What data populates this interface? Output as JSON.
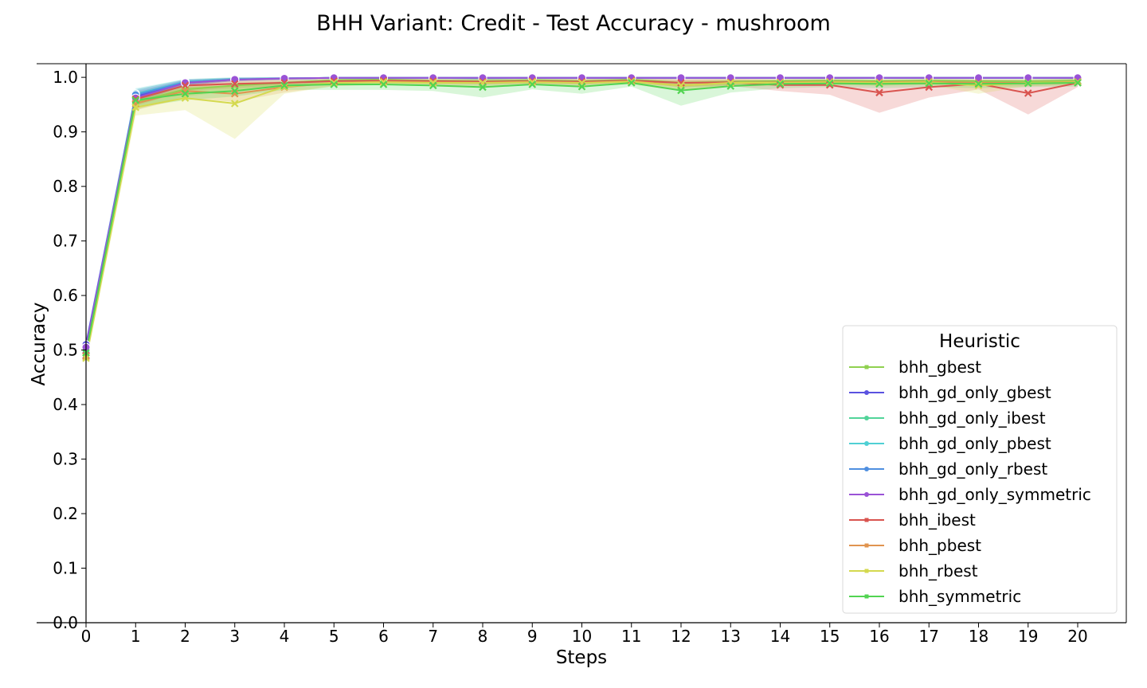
{
  "chart_data": {
    "type": "line",
    "title": "BHH Variant: Credit - Test Accuracy - mushroom",
    "xlabel": "Steps",
    "ylabel": "Accuracy",
    "xlim": [
      0,
      21
    ],
    "ylim": [
      0,
      1.025
    ],
    "x": [
      0,
      1,
      2,
      3,
      4,
      5,
      6,
      7,
      8,
      9,
      10,
      11,
      12,
      13,
      14,
      15,
      16,
      17,
      18,
      19,
      20
    ],
    "x_ticks": [
      "0",
      "1",
      "2",
      "3",
      "4",
      "5",
      "6",
      "7",
      "8",
      "9",
      "10",
      "11",
      "12",
      "13",
      "14",
      "15",
      "16",
      "17",
      "18",
      "19",
      "20"
    ],
    "y_ticks": [
      "0.0",
      "0.1",
      "0.2",
      "0.3",
      "0.4",
      "0.5",
      "0.6",
      "0.7",
      "0.8",
      "0.9",
      "1.0"
    ],
    "grid": false,
    "legend": {
      "title": "Heuristic",
      "placement": "lower-right"
    },
    "series": [
      {
        "name": "bhh_gbest",
        "color": "#8fd14f",
        "marker": "x",
        "values": [
          0.49,
          0.955,
          0.978,
          0.985,
          0.99,
          0.995,
          0.996,
          0.994,
          0.993,
          0.995,
          0.993,
          0.996,
          0.99,
          0.992,
          0.993,
          0.994,
          0.993,
          0.994,
          0.993,
          0.992,
          0.994
        ],
        "lower": [
          0.48,
          0.94,
          0.965,
          0.975,
          0.983,
          0.99,
          0.992,
          0.99,
          0.988,
          0.99,
          0.988,
          0.992,
          0.982,
          0.986,
          0.988,
          0.99,
          0.988,
          0.99,
          0.988,
          0.987,
          0.99
        ],
        "upper": [
          0.5,
          0.968,
          0.99,
          0.993,
          0.996,
          0.999,
          0.999,
          0.998,
          0.997,
          0.999,
          0.997,
          0.999,
          0.997,
          0.997,
          0.997,
          0.998,
          0.997,
          0.998,
          0.997,
          0.997,
          0.998
        ]
      },
      {
        "name": "bhh_gd_only_gbest",
        "color": "#5a52e0",
        "marker": "o",
        "values": [
          0.51,
          0.965,
          0.99,
          0.996,
          0.998,
          0.999,
          0.999,
          0.999,
          0.999,
          0.999,
          0.999,
          0.999,
          0.999,
          0.999,
          0.999,
          0.999,
          0.999,
          0.999,
          0.999,
          0.999,
          0.999
        ],
        "lower": [
          0.5,
          0.955,
          0.985,
          0.993,
          0.996,
          0.998,
          0.998,
          0.998,
          0.998,
          0.998,
          0.998,
          0.998,
          0.998,
          0.998,
          0.998,
          0.998,
          0.998,
          0.998,
          0.998,
          0.998,
          0.998
        ],
        "upper": [
          0.52,
          0.975,
          0.995,
          0.999,
          1.0,
          1.0,
          1.0,
          1.0,
          1.0,
          1.0,
          1.0,
          1.0,
          1.0,
          1.0,
          1.0,
          1.0,
          1.0,
          1.0,
          1.0,
          1.0,
          1.0
        ]
      },
      {
        "name": "bhh_gd_only_ibest",
        "color": "#52d49a",
        "marker": "o",
        "values": [
          0.5,
          0.968,
          0.992,
          0.997,
          0.998,
          0.999,
          0.999,
          0.999,
          0.998,
          0.999,
          0.999,
          0.999,
          0.999,
          0.999,
          0.999,
          0.999,
          0.999,
          0.999,
          0.999,
          0.999,
          0.999
        ],
        "lower": [
          0.49,
          0.958,
          0.987,
          0.994,
          0.996,
          0.998,
          0.998,
          0.998,
          0.996,
          0.998,
          0.998,
          0.998,
          0.998,
          0.998,
          0.998,
          0.998,
          0.998,
          0.998,
          0.998,
          0.998,
          0.998
        ],
        "upper": [
          0.51,
          0.978,
          0.997,
          1.0,
          1.0,
          1.0,
          1.0,
          1.0,
          1.0,
          1.0,
          1.0,
          1.0,
          1.0,
          1.0,
          1.0,
          1.0,
          1.0,
          1.0,
          1.0,
          1.0,
          1.0
        ]
      },
      {
        "name": "bhh_gd_only_pbest",
        "color": "#4fd0d4",
        "marker": "o",
        "values": [
          0.495,
          0.97,
          0.992,
          0.997,
          0.998,
          0.999,
          0.999,
          0.999,
          0.999,
          0.999,
          0.999,
          0.999,
          0.999,
          0.999,
          0.999,
          0.999,
          0.999,
          0.999,
          0.999,
          0.999,
          0.999
        ],
        "lower": [
          0.485,
          0.96,
          0.987,
          0.994,
          0.996,
          0.998,
          0.998,
          0.998,
          0.998,
          0.998,
          0.998,
          0.998,
          0.998,
          0.998,
          0.998,
          0.998,
          0.998,
          0.998,
          0.998,
          0.998,
          0.998
        ],
        "upper": [
          0.505,
          0.98,
          0.997,
          1.0,
          1.0,
          1.0,
          1.0,
          1.0,
          1.0,
          1.0,
          1.0,
          1.0,
          1.0,
          1.0,
          1.0,
          1.0,
          1.0,
          1.0,
          1.0,
          1.0,
          1.0
        ]
      },
      {
        "name": "bhh_gd_only_rbest",
        "color": "#4f8fe0",
        "marker": "o",
        "values": [
          0.505,
          0.968,
          0.991,
          0.996,
          0.998,
          0.999,
          0.999,
          0.999,
          0.999,
          0.999,
          0.999,
          0.999,
          0.999,
          0.999,
          0.999,
          0.999,
          0.999,
          0.999,
          0.999,
          0.999,
          0.999
        ],
        "lower": [
          0.495,
          0.958,
          0.986,
          0.993,
          0.996,
          0.998,
          0.998,
          0.998,
          0.998,
          0.998,
          0.998,
          0.998,
          0.998,
          0.998,
          0.998,
          0.998,
          0.998,
          0.998,
          0.998,
          0.998,
          0.998
        ],
        "upper": [
          0.515,
          0.978,
          0.996,
          0.999,
          1.0,
          1.0,
          1.0,
          1.0,
          1.0,
          1.0,
          1.0,
          1.0,
          1.0,
          1.0,
          1.0,
          1.0,
          1.0,
          1.0,
          1.0,
          1.0,
          1.0
        ]
      },
      {
        "name": "bhh_gd_only_symmetric",
        "color": "#9a52d6",
        "marker": "o",
        "values": [
          0.505,
          0.962,
          0.99,
          0.996,
          0.998,
          0.999,
          0.999,
          0.999,
          0.999,
          0.999,
          0.999,
          0.999,
          0.999,
          0.999,
          0.999,
          0.999,
          0.999,
          0.999,
          0.999,
          0.999,
          0.999
        ],
        "lower": [
          0.495,
          0.952,
          0.985,
          0.993,
          0.996,
          0.998,
          0.998,
          0.998,
          0.998,
          0.998,
          0.998,
          0.998,
          0.998,
          0.998,
          0.998,
          0.998,
          0.998,
          0.998,
          0.998,
          0.998,
          0.998
        ],
        "upper": [
          0.515,
          0.972,
          0.995,
          0.999,
          1.0,
          1.0,
          1.0,
          1.0,
          1.0,
          1.0,
          1.0,
          1.0,
          1.0,
          1.0,
          1.0,
          1.0,
          1.0,
          1.0,
          1.0,
          1.0,
          1.0
        ]
      },
      {
        "name": "bhh_ibest",
        "color": "#d9544f",
        "marker": "x",
        "values": [
          0.49,
          0.96,
          0.985,
          0.988,
          0.99,
          0.993,
          0.994,
          0.993,
          0.992,
          0.993,
          0.992,
          0.994,
          0.99,
          0.991,
          0.986,
          0.986,
          0.972,
          0.982,
          0.988,
          0.971,
          0.99
        ],
        "lower": [
          0.48,
          0.948,
          0.975,
          0.98,
          0.984,
          0.988,
          0.99,
          0.988,
          0.987,
          0.988,
          0.987,
          0.99,
          0.982,
          0.984,
          0.975,
          0.968,
          0.935,
          0.963,
          0.978,
          0.932,
          0.982
        ],
        "upper": [
          0.5,
          0.972,
          0.993,
          0.995,
          0.996,
          0.998,
          0.998,
          0.997,
          0.997,
          0.998,
          0.997,
          0.998,
          0.997,
          0.997,
          0.996,
          0.996,
          0.995,
          0.996,
          0.996,
          0.995,
          0.997
        ]
      },
      {
        "name": "bhh_pbest",
        "color": "#e0944f",
        "marker": "x",
        "values": [
          0.488,
          0.952,
          0.975,
          0.97,
          0.982,
          0.99,
          0.992,
          0.991,
          0.99,
          0.992,
          0.99,
          0.993,
          0.985,
          0.99,
          0.991,
          0.992,
          0.991,
          0.992,
          0.99,
          0.99,
          0.992
        ],
        "lower": [
          0.478,
          0.94,
          0.962,
          0.955,
          0.972,
          0.984,
          0.987,
          0.986,
          0.984,
          0.987,
          0.984,
          0.988,
          0.975,
          0.983,
          0.985,
          0.987,
          0.985,
          0.987,
          0.984,
          0.984,
          0.987
        ],
        "upper": [
          0.498,
          0.964,
          0.986,
          0.984,
          0.992,
          0.996,
          0.997,
          0.996,
          0.996,
          0.997,
          0.996,
          0.997,
          0.994,
          0.996,
          0.996,
          0.997,
          0.996,
          0.997,
          0.996,
          0.996,
          0.997
        ]
      },
      {
        "name": "bhh_rbest",
        "color": "#d4d94f",
        "marker": "x",
        "values": [
          0.485,
          0.945,
          0.962,
          0.952,
          0.983,
          0.99,
          0.991,
          0.99,
          0.99,
          0.991,
          0.99,
          0.992,
          0.985,
          0.99,
          0.99,
          0.991,
          0.99,
          0.991,
          0.985,
          0.99,
          0.991
        ],
        "lower": [
          0.475,
          0.93,
          0.94,
          0.887,
          0.97,
          0.984,
          0.986,
          0.985,
          0.984,
          0.986,
          0.984,
          0.987,
          0.975,
          0.983,
          0.984,
          0.986,
          0.984,
          0.986,
          0.97,
          0.984,
          0.986
        ],
        "upper": [
          0.495,
          0.958,
          0.982,
          0.99,
          0.993,
          0.996,
          0.996,
          0.996,
          0.996,
          0.996,
          0.996,
          0.997,
          0.994,
          0.996,
          0.996,
          0.996,
          0.996,
          0.996,
          0.995,
          0.996,
          0.996
        ]
      },
      {
        "name": "bhh_symmetric",
        "color": "#52d452",
        "marker": "x",
        "values": [
          0.495,
          0.958,
          0.97,
          0.975,
          0.985,
          0.987,
          0.987,
          0.985,
          0.982,
          0.987,
          0.983,
          0.99,
          0.976,
          0.984,
          0.988,
          0.989,
          0.988,
          0.989,
          0.988,
          0.989,
          0.99
        ],
        "lower": [
          0.485,
          0.945,
          0.958,
          0.965,
          0.977,
          0.977,
          0.977,
          0.975,
          0.963,
          0.978,
          0.97,
          0.983,
          0.948,
          0.972,
          0.98,
          0.982,
          0.98,
          0.982,
          0.98,
          0.982,
          0.983
        ],
        "upper": [
          0.505,
          0.97,
          0.982,
          0.985,
          0.993,
          0.995,
          0.995,
          0.994,
          0.994,
          0.995,
          0.993,
          0.997,
          0.992,
          0.994,
          0.995,
          0.996,
          0.995,
          0.996,
          0.995,
          0.996,
          0.997
        ]
      }
    ]
  }
}
